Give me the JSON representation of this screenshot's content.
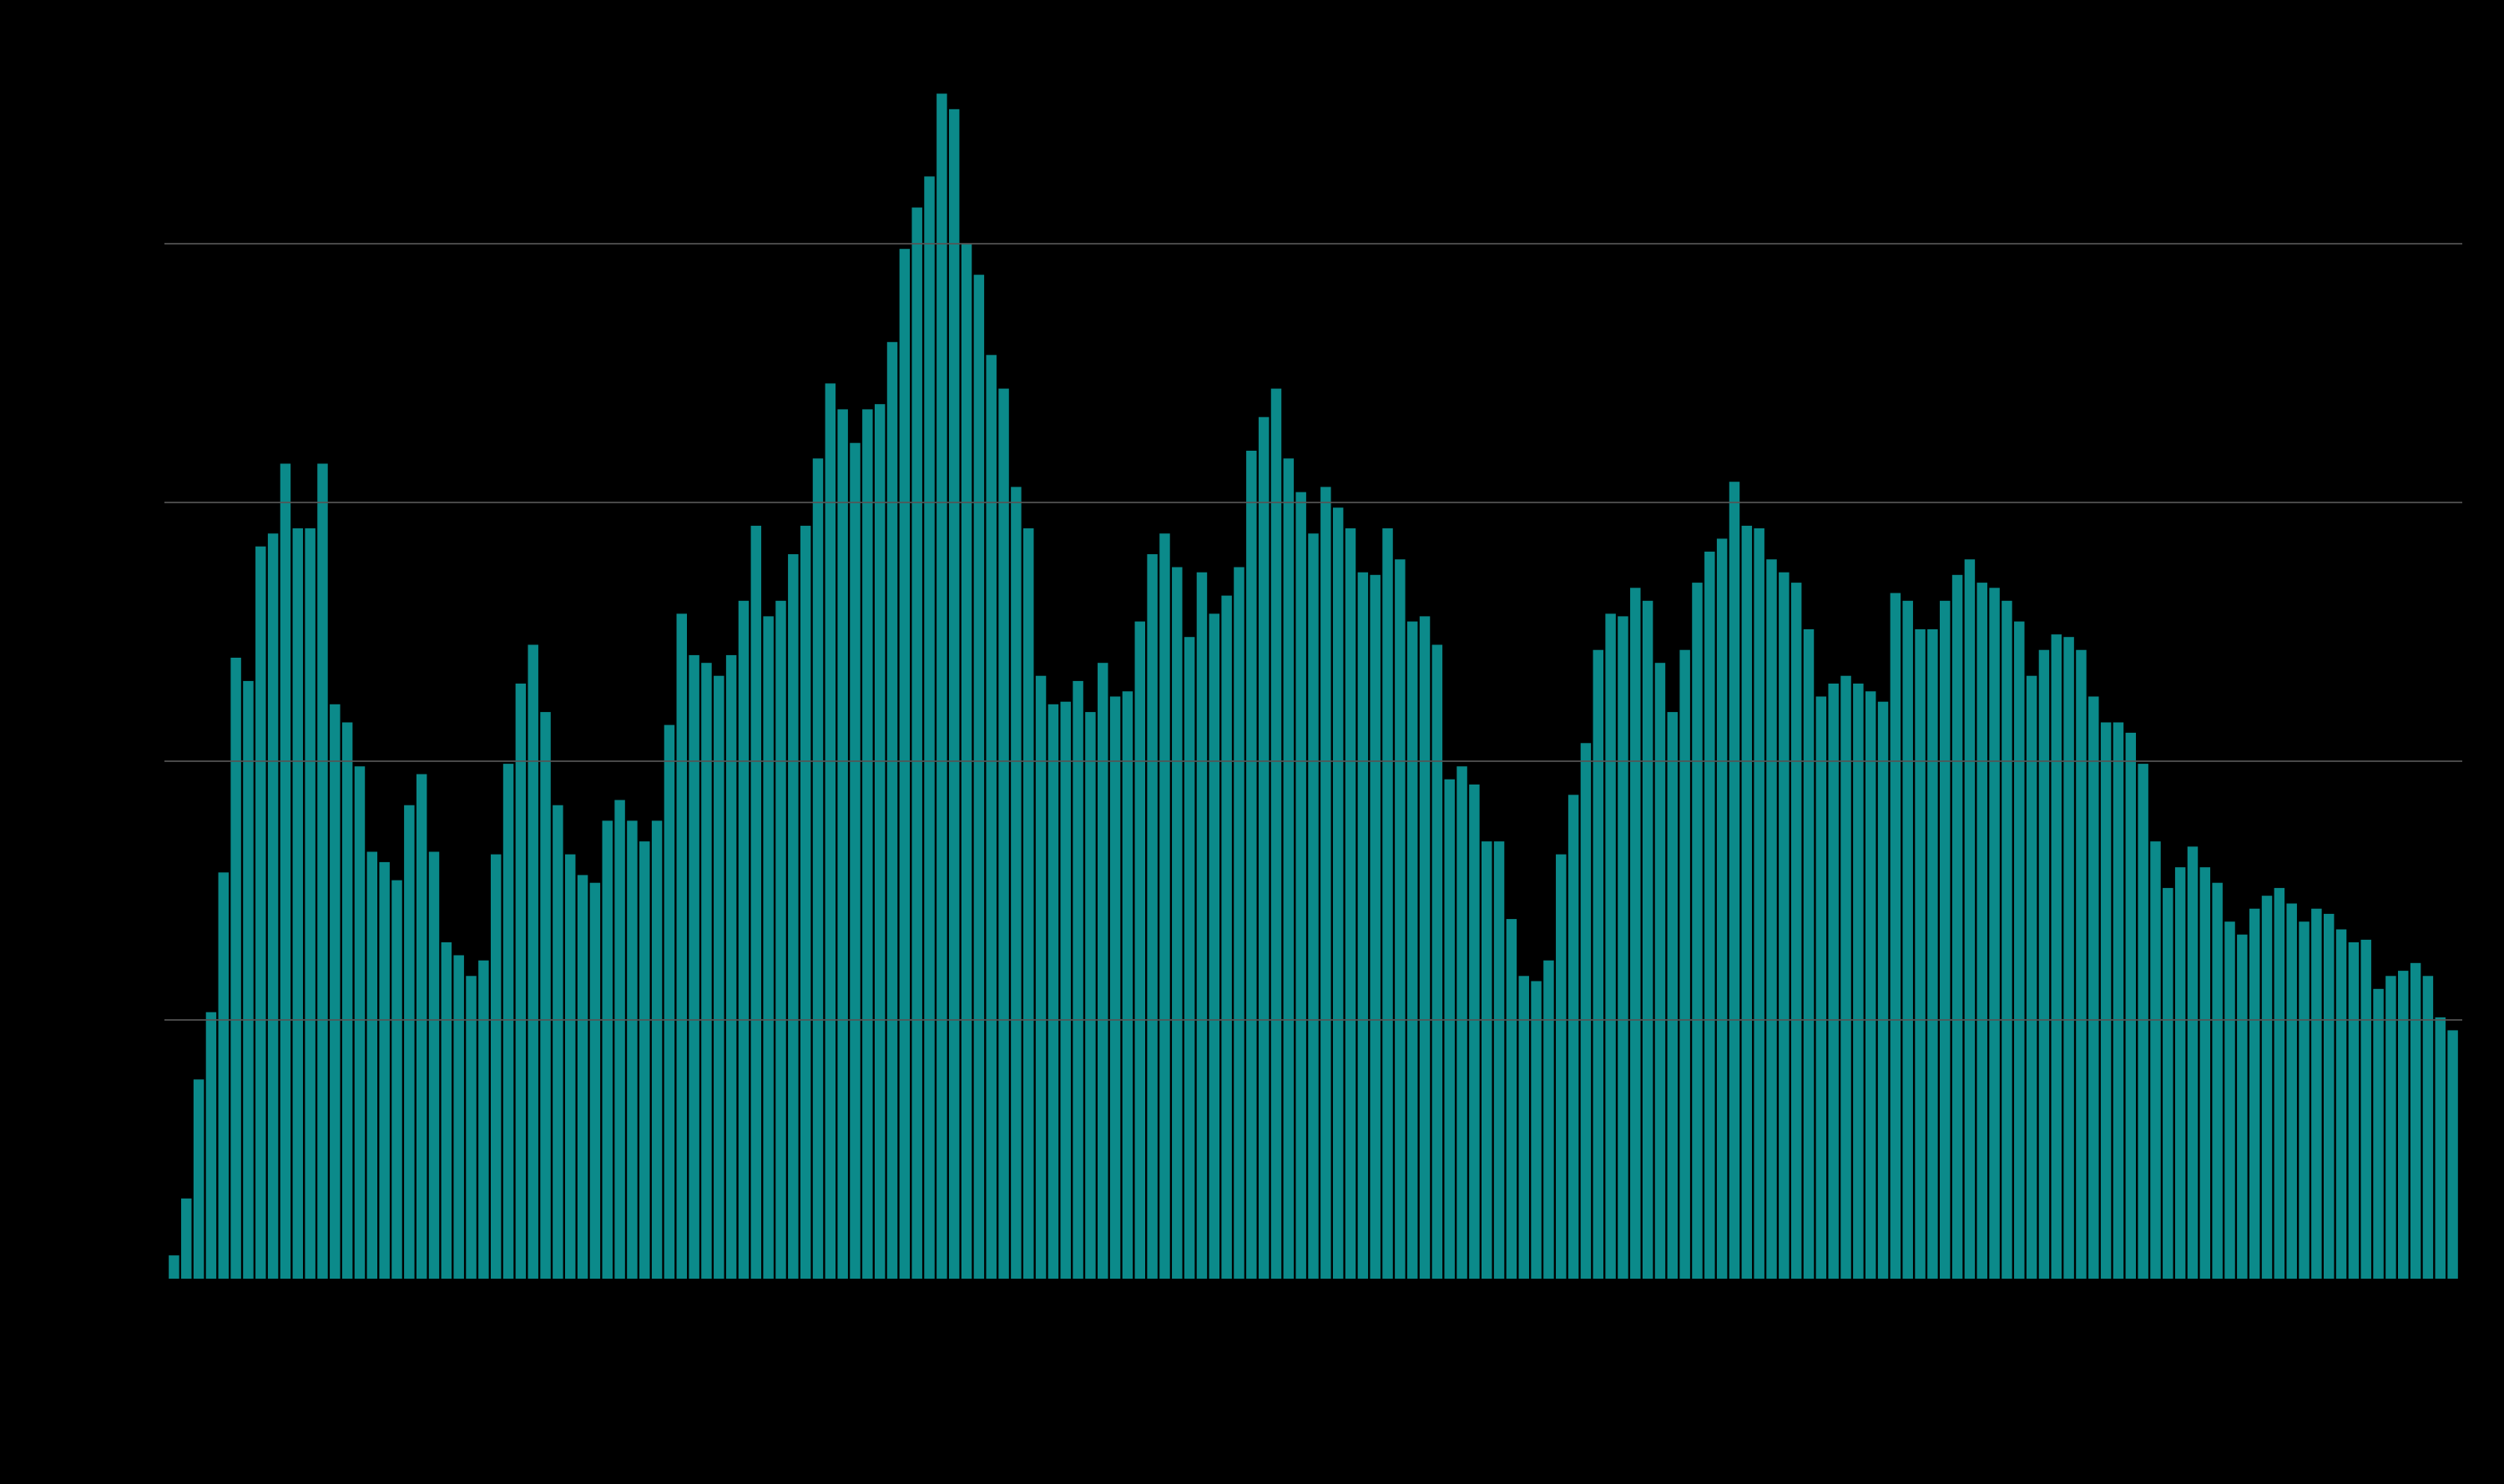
{
  "chart_data": {
    "type": "bar",
    "color": "#0b8a8a",
    "grid": true,
    "ylim": [
      0,
      4.6
    ],
    "yticks": [
      1,
      2,
      3,
      4
    ],
    "values": [
      0.09,
      0.31,
      0.77,
      1.03,
      1.57,
      2.4,
      2.31,
      2.83,
      2.88,
      3.15,
      2.9,
      2.9,
      3.15,
      2.22,
      2.15,
      1.98,
      1.65,
      1.61,
      1.54,
      1.83,
      1.95,
      1.65,
      1.3,
      1.25,
      1.17,
      1.23,
      1.64,
      1.99,
      2.3,
      2.45,
      2.19,
      1.83,
      1.64,
      1.56,
      1.53,
      1.77,
      1.85,
      1.77,
      1.69,
      1.77,
      2.14,
      2.57,
      2.41,
      2.38,
      2.33,
      2.41,
      2.62,
      2.91,
      2.56,
      2.62,
      2.8,
      2.91,
      3.17,
      3.46,
      3.36,
      3.23,
      3.36,
      3.38,
      3.62,
      3.98,
      4.14,
      4.26,
      4.58,
      4.52,
      4.0,
      3.88,
      3.57,
      3.44,
      3.06,
      2.9,
      2.33,
      2.22,
      2.23,
      2.31,
      2.19,
      2.38,
      2.25,
      2.27,
      2.54,
      2.8,
      2.88,
      2.75,
      2.48,
      2.73,
      2.57,
      2.64,
      2.75,
      3.2,
      3.33,
      3.44,
      3.17,
      3.04,
      2.88,
      3.06,
      2.98,
      2.9,
      2.73,
      2.72,
      2.9,
      2.78,
      2.54,
      2.56,
      2.45,
      1.93,
      1.98,
      1.91,
      1.69,
      1.69,
      1.39,
      1.17,
      1.15,
      1.23,
      1.64,
      1.87,
      2.07,
      2.43,
      2.57,
      2.56,
      2.67,
      2.62,
      2.38,
      2.19,
      2.43,
      2.69,
      2.81,
      2.86,
      3.08,
      2.91,
      2.9,
      2.78,
      2.73,
      2.69,
      2.51,
      2.25,
      2.3,
      2.33,
      2.3,
      2.27,
      2.23,
      2.65,
      2.62,
      2.51,
      2.51,
      2.62,
      2.72,
      2.78,
      2.69,
      2.67,
      2.62,
      2.54,
      2.33,
      2.43,
      2.49,
      2.48,
      2.43,
      2.25,
      2.15,
      2.15,
      2.11,
      1.99,
      1.69,
      1.51,
      1.59,
      1.67,
      1.59,
      1.53,
      1.38,
      1.33,
      1.43,
      1.48,
      1.51,
      1.45,
      1.38,
      1.43,
      1.41,
      1.35,
      1.3,
      1.31,
      1.12,
      1.17,
      1.19,
      1.22,
      1.17,
      1.01,
      0.96
    ]
  }
}
